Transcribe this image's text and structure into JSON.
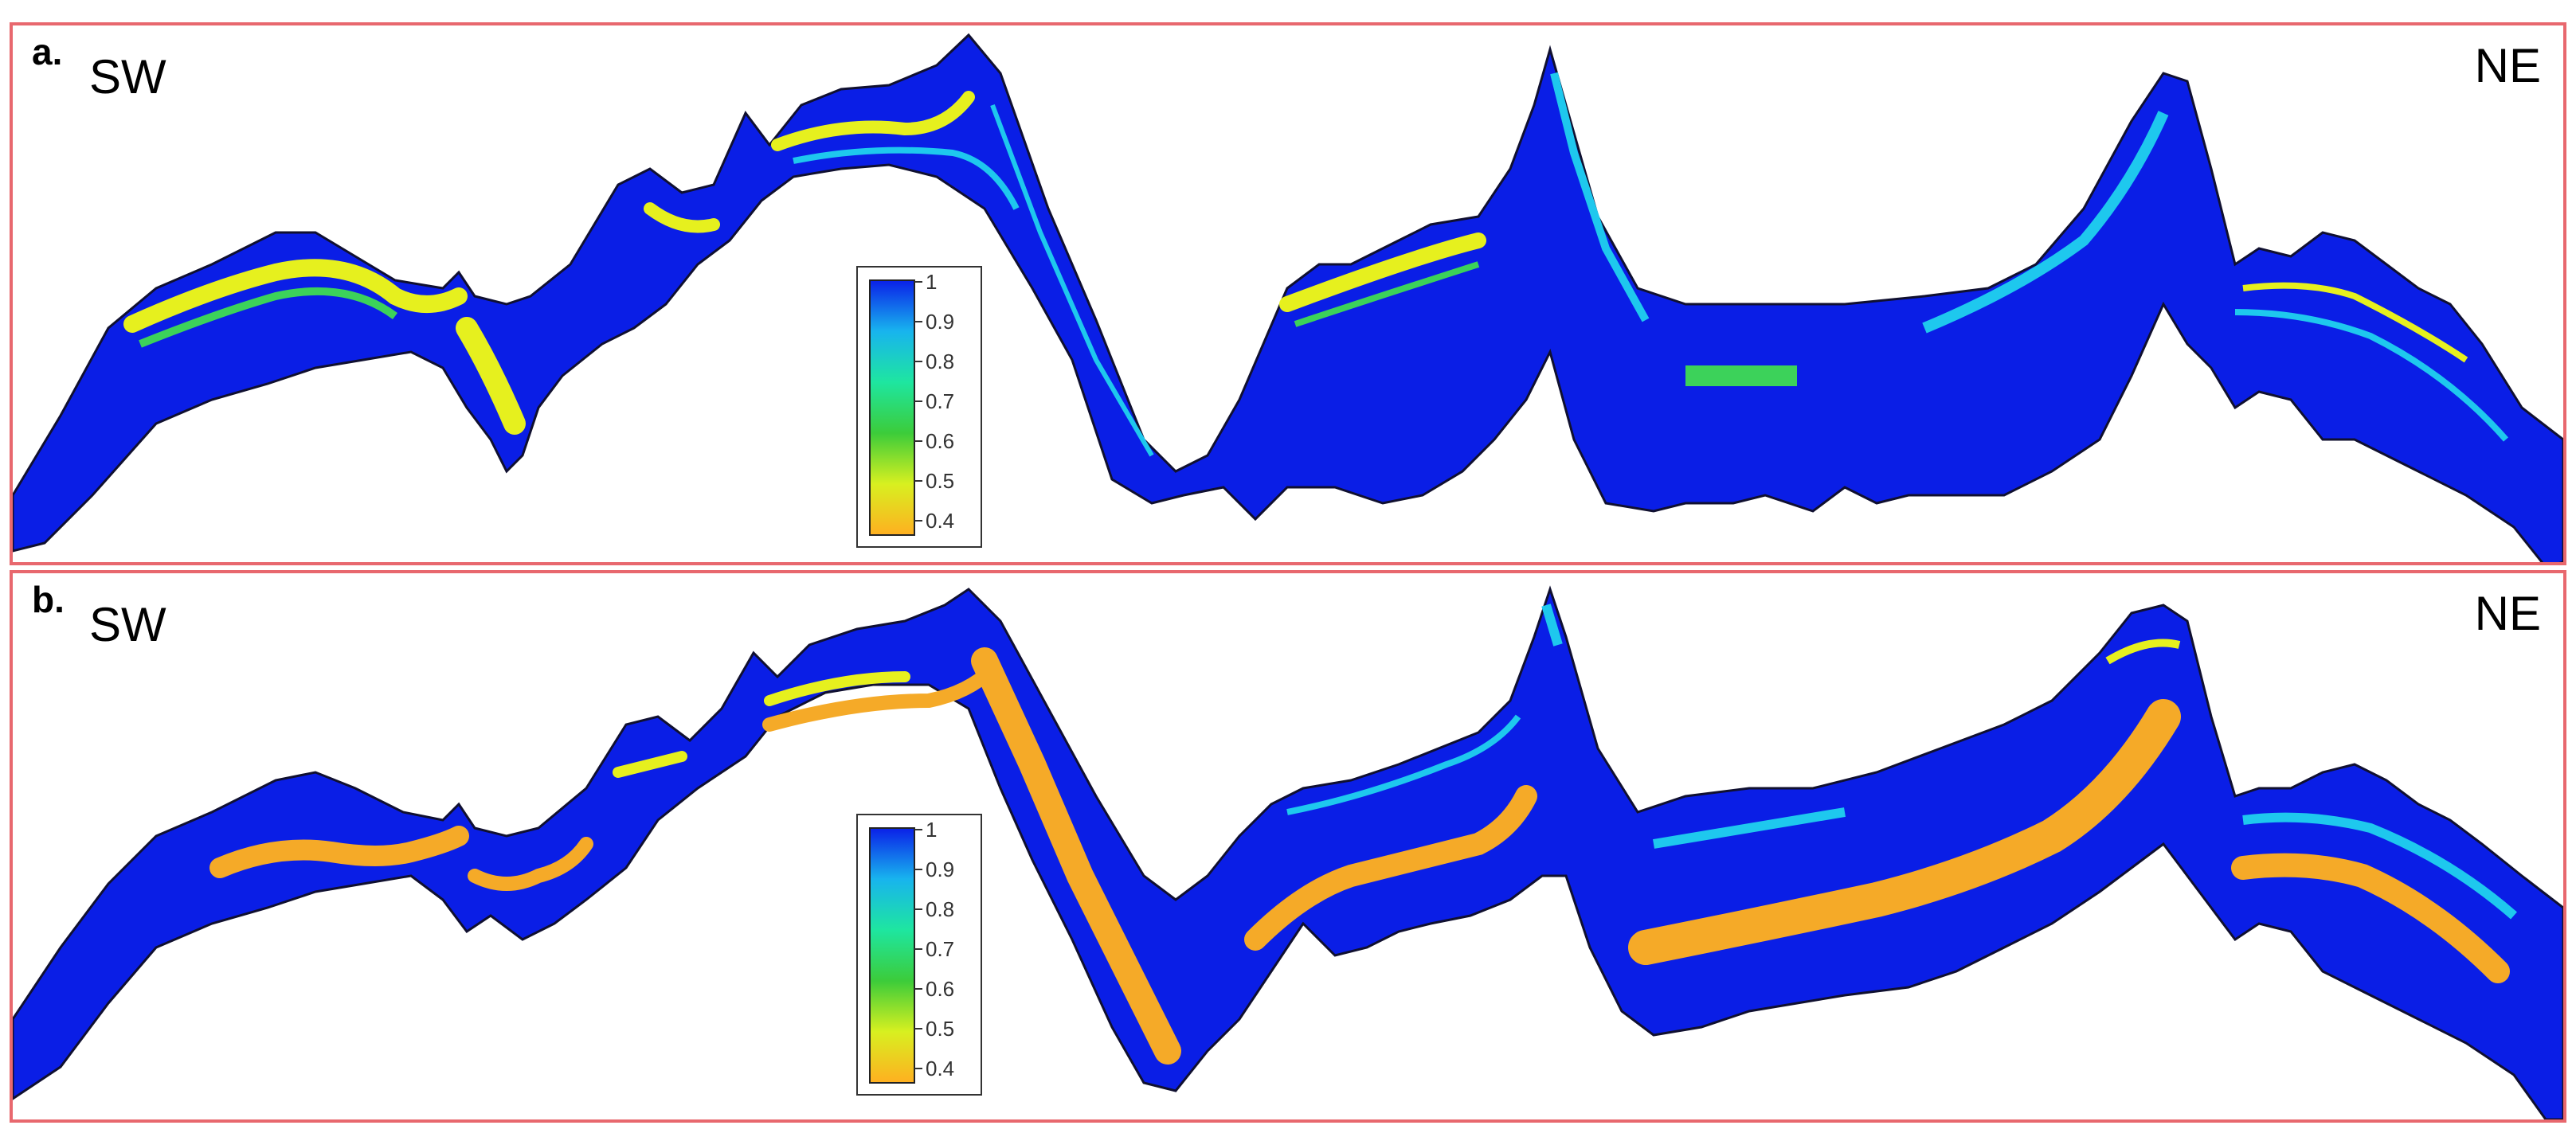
{
  "panels": [
    {
      "label": "a.",
      "left_direction": "SW",
      "right_direction": "NE"
    },
    {
      "label": "b.",
      "left_direction": "SW",
      "right_direction": "NE"
    }
  ],
  "colorbar": {
    "ticks": [
      "1",
      "0.9",
      "0.8",
      "0.7",
      "0.6",
      "0.5",
      "0.4"
    ],
    "colors": [
      "#0a20e8",
      "#18b4ee",
      "#1ee6a0",
      "#3ccc3a",
      "#d8f020",
      "#ffb020"
    ]
  },
  "palette": {
    "frame": "#e8686e",
    "base": "#0a1ee6",
    "cyan": "#1ec8ee",
    "green": "#3cd25a",
    "yellow": "#e6f01e",
    "orange": "#f5aa28"
  }
}
